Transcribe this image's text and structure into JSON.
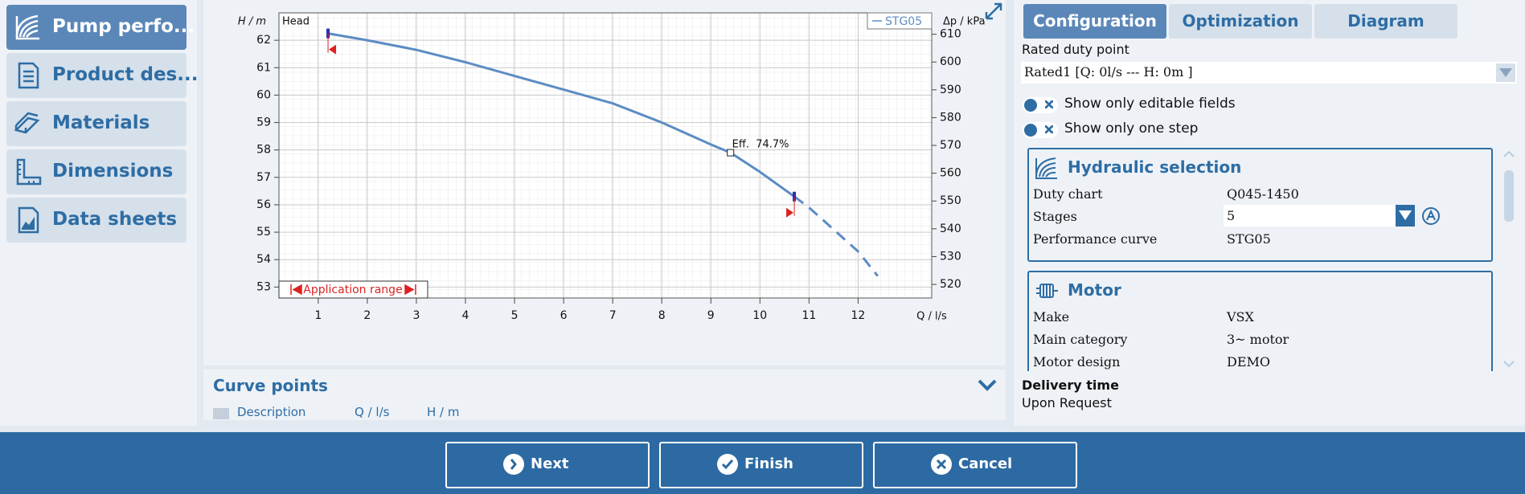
{
  "sidebar": {
    "items": [
      "Pump perfo...",
      "Product des...",
      "Materials",
      "Dimensions",
      "Data sheets"
    ]
  },
  "chart_data": {
    "type": "line",
    "head_label": "Head",
    "y_label": "H / m",
    "y2_label": "Δp / kPa",
    "x_label": "Q / l/s",
    "xlim": [
      0.2,
      13.5
    ],
    "xticks": [
      1,
      2,
      3,
      4,
      5,
      6,
      7,
      8,
      9,
      10,
      11,
      12
    ],
    "ylim": [
      52.6,
      63
    ],
    "yticks": [
      53,
      54,
      55,
      56,
      57,
      58,
      59,
      60,
      61,
      62
    ],
    "y2lim": [
      515.1,
      617.7
    ],
    "y2ticks": [
      520,
      530,
      540,
      550,
      560,
      570,
      580,
      590,
      600,
      610
    ],
    "grid": true,
    "legend": "upper right",
    "x": [
      1.2,
      2,
      3,
      4,
      5,
      6,
      7,
      8,
      9,
      9.4,
      10,
      10.7,
      11,
      12,
      12.4
    ],
    "series": [
      {
        "name": "STG05",
        "color": "#5b8cc4",
        "values": [
          62.25,
          62.0,
          61.65,
          61.2,
          60.7,
          60.2,
          59.7,
          59.0,
          58.2,
          57.9,
          57.2,
          56.3,
          null,
          null,
          null
        ]
      },
      {
        "color": "#5b8cc4",
        "dashed": true,
        "values": [
          null,
          null,
          null,
          null,
          null,
          null,
          null,
          null,
          null,
          null,
          null,
          56.3,
          55.9,
          54.3,
          53.4
        ]
      }
    ],
    "annotations": [
      {
        "text": "Eff.  74.7%",
        "x": 9.4,
        "y": 57.9
      }
    ],
    "application_range": {
      "label": "Application range",
      "x": [
        1.2,
        10.7
      ]
    }
  },
  "curve_points": {
    "title": "Curve points",
    "columns": [
      "Description",
      "Q / l/s",
      "H / m"
    ]
  },
  "config": {
    "tabs": [
      "Configuration",
      "Optimization",
      "Diagram"
    ],
    "rated_label": "Rated duty point",
    "rated_value": "Rated1 [Q: 0l/s --- H: 0m ]",
    "toggles": [
      "Show only editable fields",
      "Show only one step"
    ],
    "sections": [
      {
        "title": "Hydraulic selection",
        "rows": [
          [
            "Duty chart",
            "Q045-1450"
          ],
          [
            "Stages",
            "5"
          ],
          [
            "Performance curve",
            "STG05"
          ]
        ]
      },
      {
        "title": "Motor",
        "rows": [
          [
            "Make",
            "VSX"
          ],
          [
            "Main category",
            "3~ motor"
          ],
          [
            "Motor design",
            "DEMO"
          ]
        ]
      }
    ],
    "delivery_label": "Delivery time",
    "delivery_value": "Upon Request"
  },
  "buttons": [
    "Next",
    "Finish",
    "Cancel"
  ]
}
